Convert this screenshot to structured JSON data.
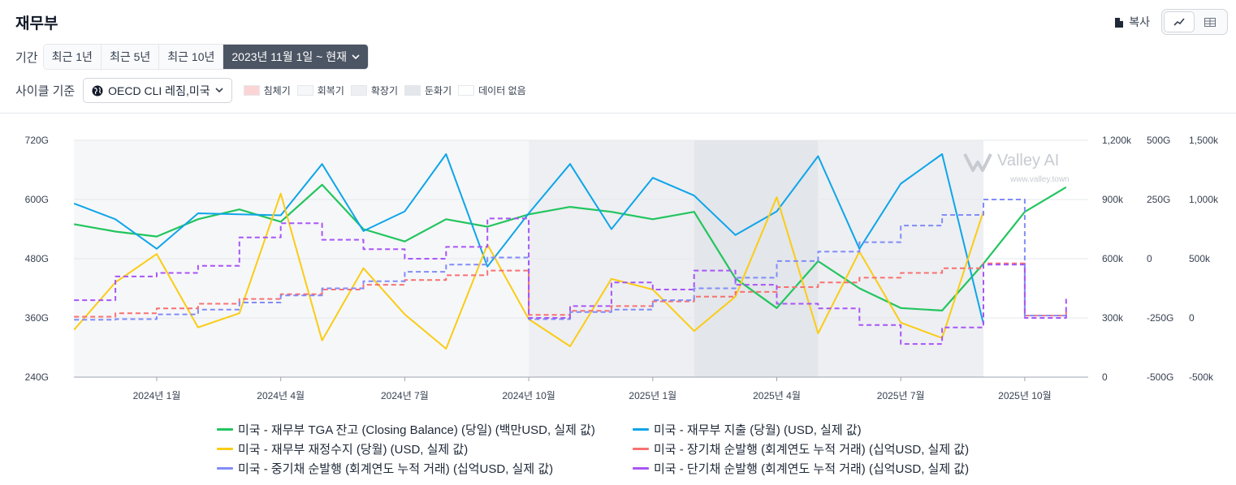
{
  "header": {
    "title": "재무부",
    "copy_label": "복사"
  },
  "period": {
    "label": "기간",
    "options": [
      "최근 1년",
      "최근 5년",
      "최근 10년"
    ],
    "active": "2023년 11월 1일 ~ 현재"
  },
  "cycle": {
    "label": "사이클 기준",
    "select": "OECD CLI 레짐,미국",
    "phases": [
      {
        "label": "침체기",
        "color": "#fbd5d5"
      },
      {
        "label": "회복기",
        "color": "#f6f7f9"
      },
      {
        "label": "확장기",
        "color": "#edeff2"
      },
      {
        "label": "둔화기",
        "color": "#e3e6ea"
      },
      {
        "label": "데이터 없음",
        "color": "#ffffff"
      }
    ]
  },
  "watermark": {
    "brand": "Valley AI",
    "url": "www.valley.town"
  },
  "chart_data": {
    "type": "line",
    "x_ticks": [
      "2024년 1월",
      "2024년 4월",
      "2024년 7월",
      "2024년 10월",
      "2025년 1월",
      "2025년 4월",
      "2025년 7월",
      "2025년 10월"
    ],
    "axes": {
      "left": {
        "ticks": [
          "720G",
          "600G",
          "480G",
          "360G",
          "240G"
        ],
        "min": 240,
        "max": 720
      },
      "right1": {
        "ticks": [
          "1,200k",
          "900k",
          "600k",
          "300k",
          "0"
        ],
        "min": 0,
        "max": 1200
      },
      "right2": {
        "ticks": [
          "500G",
          "250G",
          "0",
          "-250G",
          "-500G"
        ],
        "min": -500,
        "max": 500
      },
      "right3": {
        "ticks": [
          "1,500k",
          "1,000k",
          "500k",
          "0",
          "-500k"
        ],
        "min": -500,
        "max": 1500
      }
    },
    "regimes": [
      {
        "start": "2023-11",
        "end": "2024-10",
        "phase": "회복기"
      },
      {
        "start": "2024-10",
        "end": "2025-02",
        "phase": "확장기"
      },
      {
        "start": "2025-02",
        "end": "2025-05",
        "phase": "둔화기"
      },
      {
        "start": "2025-05",
        "end": "2025-09",
        "phase": "확장기"
      }
    ],
    "series": [
      {
        "name": "미국 - 재무부 TGA 잔고 (Closing Balance) (당일) (백만USD, 실제 값)",
        "color": "#22c55e",
        "axis": "left",
        "style": "solid",
        "points": [
          [
            "2023-11",
            550
          ],
          [
            "2023-12",
            535
          ],
          [
            "2024-01",
            525
          ],
          [
            "2024-02",
            560
          ],
          [
            "2024-03",
            580
          ],
          [
            "2024-04",
            555
          ],
          [
            "2024-05",
            630
          ],
          [
            "2024-06",
            540
          ],
          [
            "2024-07",
            515
          ],
          [
            "2024-08",
            560
          ],
          [
            "2024-09",
            545
          ],
          [
            "2024-10",
            570
          ],
          [
            "2024-11",
            585
          ],
          [
            "2024-12",
            575
          ],
          [
            "2025-01",
            560
          ],
          [
            "2025-02",
            575
          ],
          [
            "2025-03",
            440
          ],
          [
            "2025-04",
            380
          ],
          [
            "2025-05",
            475
          ],
          [
            "2025-06",
            420
          ],
          [
            "2025-07",
            380
          ],
          [
            "2025-08",
            375
          ],
          [
            "2025-09",
            470
          ],
          [
            "2025-10",
            575
          ],
          [
            "2025-11",
            625
          ]
        ]
      },
      {
        "name": "미국 - 재무부 지출 (당월) (USD, 실제 값)",
        "color": "#0ea5e9",
        "axis": "right1",
        "style": "solid",
        "points": [
          [
            "2023-11",
            880
          ],
          [
            "2023-12",
            800
          ],
          [
            "2024-01",
            650
          ],
          [
            "2024-02",
            830
          ],
          [
            "2024-03",
            825
          ],
          [
            "2024-04",
            820
          ],
          [
            "2024-05",
            1080
          ],
          [
            "2024-06",
            740
          ],
          [
            "2024-07",
            840
          ],
          [
            "2024-08",
            1130
          ],
          [
            "2024-09",
            560
          ],
          [
            "2024-10",
            830
          ],
          [
            "2024-11",
            1080
          ],
          [
            "2024-12",
            750
          ],
          [
            "2025-01",
            1010
          ],
          [
            "2025-02",
            920
          ],
          [
            "2025-03",
            720
          ],
          [
            "2025-04",
            840
          ],
          [
            "2025-05",
            1120
          ],
          [
            "2025-06",
            650
          ],
          [
            "2025-07",
            980
          ],
          [
            "2025-08",
            1130
          ],
          [
            "2025-09",
            270
          ]
        ]
      },
      {
        "name": "미국 - 재무부 재정수지 (당월) (USD, 실제 값)",
        "color": "#facc15",
        "axis": "right2",
        "style": "solid",
        "points": [
          [
            "2023-11",
            -300
          ],
          [
            "2023-12",
            -100
          ],
          [
            "2024-01",
            20
          ],
          [
            "2024-02",
            -290
          ],
          [
            "2024-03",
            -230
          ],
          [
            "2024-04",
            275
          ],
          [
            "2024-05",
            -345
          ],
          [
            "2024-06",
            -40
          ],
          [
            "2024-07",
            -235
          ],
          [
            "2024-08",
            -380
          ],
          [
            "2024-09",
            60
          ],
          [
            "2024-10",
            -255
          ],
          [
            "2024-11",
            -370
          ],
          [
            "2024-12",
            -85
          ],
          [
            "2025-01",
            -130
          ],
          [
            "2025-02",
            -305
          ],
          [
            "2025-03",
            -160
          ],
          [
            "2025-04",
            260
          ],
          [
            "2025-05",
            -315
          ],
          [
            "2025-06",
            30
          ],
          [
            "2025-07",
            -270
          ],
          [
            "2025-08",
            -335
          ],
          [
            "2025-09",
            200
          ]
        ]
      },
      {
        "name": "미국 - 장기채 순발행 (회계연도 누적 거래) (십억USD, 실제 값)",
        "color": "#f87171",
        "axis": "right3",
        "style": "dashed",
        "points": [
          [
            "2023-11",
            10
          ],
          [
            "2023-12",
            40
          ],
          [
            "2024-01",
            80
          ],
          [
            "2024-02",
            120
          ],
          [
            "2024-03",
            160
          ],
          [
            "2024-04",
            200
          ],
          [
            "2024-05",
            240
          ],
          [
            "2024-06",
            280
          ],
          [
            "2024-07",
            320
          ],
          [
            "2024-08",
            360
          ],
          [
            "2024-09",
            400
          ],
          [
            "2024-10",
            25
          ],
          [
            "2024-11",
            60
          ],
          [
            "2024-12",
            100
          ],
          [
            "2025-01",
            140
          ],
          [
            "2025-02",
            180
          ],
          [
            "2025-03",
            220
          ],
          [
            "2025-04",
            260
          ],
          [
            "2025-05",
            300
          ],
          [
            "2025-06",
            340
          ],
          [
            "2025-07",
            380
          ],
          [
            "2025-08",
            420
          ],
          [
            "2025-09",
            460
          ],
          [
            "2025-10",
            20
          ],
          [
            "2025-11",
            60
          ]
        ]
      },
      {
        "name": "미국 - 중기채 순발행 (회계연도 누적 거래) (십억USD, 실제 값)",
        "color": "#818cf8",
        "axis": "right3",
        "style": "dashed",
        "points": [
          [
            "2023-11",
            -15
          ],
          [
            "2023-12",
            -10
          ],
          [
            "2024-01",
            30
          ],
          [
            "2024-02",
            70
          ],
          [
            "2024-03",
            130
          ],
          [
            "2024-04",
            190
          ],
          [
            "2024-05",
            250
          ],
          [
            "2024-06",
            310
          ],
          [
            "2024-07",
            390
          ],
          [
            "2024-08",
            450
          ],
          [
            "2024-09",
            510
          ],
          [
            "2024-10",
            -10
          ],
          [
            "2024-11",
            50
          ],
          [
            "2024-12",
            70
          ],
          [
            "2025-01",
            150
          ],
          [
            "2025-02",
            250
          ],
          [
            "2025-03",
            340
          ],
          [
            "2025-04",
            480
          ],
          [
            "2025-05",
            560
          ],
          [
            "2025-06",
            640
          ],
          [
            "2025-07",
            780
          ],
          [
            "2025-08",
            870
          ],
          [
            "2025-09",
            1000
          ],
          [
            "2025-10",
            20
          ],
          [
            "2025-11",
            40
          ]
        ]
      },
      {
        "name": "미국 - 단기채 순발행 (회계연도 누적 거래) (십억USD, 실제 값)",
        "color": "#a855f7",
        "axis": "right3",
        "style": "dashed",
        "points": [
          [
            "2023-11",
            150
          ],
          [
            "2023-12",
            350
          ],
          [
            "2024-01",
            380
          ],
          [
            "2024-02",
            440
          ],
          [
            "2024-03",
            680
          ],
          [
            "2024-04",
            800
          ],
          [
            "2024-05",
            660
          ],
          [
            "2024-06",
            580
          ],
          [
            "2024-07",
            500
          ],
          [
            "2024-08",
            600
          ],
          [
            "2024-09",
            840
          ],
          [
            "2024-10",
            0
          ],
          [
            "2024-11",
            100
          ],
          [
            "2024-12",
            300
          ],
          [
            "2025-01",
            240
          ],
          [
            "2025-02",
            400
          ],
          [
            "2025-03",
            280
          ],
          [
            "2025-04",
            120
          ],
          [
            "2025-05",
            80
          ],
          [
            "2025-06",
            -60
          ],
          [
            "2025-07",
            -220
          ],
          [
            "2025-08",
            -80
          ],
          [
            "2025-09",
            450
          ],
          [
            "2025-10",
            0
          ],
          [
            "2025-11",
            180
          ]
        ]
      }
    ]
  }
}
